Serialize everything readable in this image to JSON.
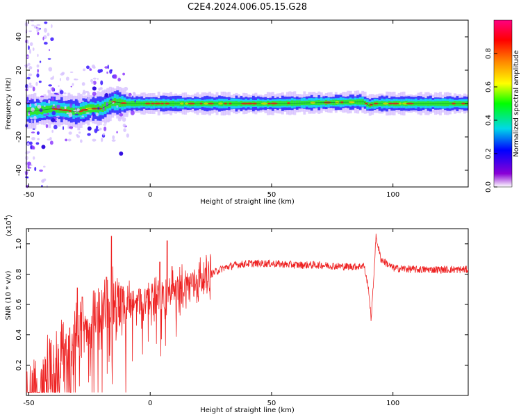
{
  "title": "C2E4.2024.006.05.15.G28",
  "chart_data": [
    {
      "type": "heatmap",
      "xlabel": "Height of straight line (km)",
      "ylabel": "Frequency (Hz)",
      "xlim": [
        -51,
        131
      ],
      "ylim": [
        -50,
        50
      ],
      "xticks": [
        -50,
        0,
        50,
        100
      ],
      "yticks": [
        -40,
        -20,
        0,
        20,
        40
      ],
      "colorbar": {
        "label": "Normalized spectral amplitude",
        "range": [
          0,
          1
        ],
        "ticks": [
          "0.0",
          "0.2",
          "0.4",
          "0.6",
          "0.8"
        ],
        "colormap": "rainbow",
        "colors": [
          "#ffffff",
          "#8a00d6",
          "#0000ff",
          "#00d8e8",
          "#00ff00",
          "#ffff00",
          "#ff8800",
          "#ff0000",
          "#ff0080"
        ]
      },
      "ridge": [
        [
          -51,
          -5
        ],
        [
          -45,
          -4
        ],
        [
          -40,
          -3
        ],
        [
          -35,
          -4
        ],
        [
          -30,
          -5
        ],
        [
          -25,
          -3
        ],
        [
          -20,
          -3
        ],
        [
          -15,
          1
        ],
        [
          -10,
          0
        ],
        [
          0,
          0
        ],
        [
          50,
          0
        ],
        [
          88,
          1
        ],
        [
          90,
          -1
        ],
        [
          93,
          0
        ],
        [
          131,
          0
        ]
      ]
    },
    {
      "type": "line",
      "xlabel": "Height of straight line (km)",
      "ylabel": "SNR (10 * v/v)",
      "scale_label": "(x10",
      "scale_exponent": "4",
      "xlim": [
        -51,
        131
      ],
      "ylim": [
        0,
        1.1
      ],
      "xticks": [
        -50,
        0,
        50,
        100
      ],
      "yticks": [
        0.2,
        0.4,
        0.6,
        0.8,
        1.0
      ],
      "line_color": "#ee2222",
      "envelope": [
        [
          -51,
          0.04
        ],
        [
          -45,
          0.05
        ],
        [
          -42,
          0.12
        ],
        [
          -38,
          0.22
        ],
        [
          -34,
          0.3
        ],
        [
          -30,
          0.38
        ],
        [
          -26,
          0.45
        ],
        [
          -22,
          0.5
        ],
        [
          -18,
          0.55
        ],
        [
          -14,
          0.58
        ],
        [
          -10,
          0.6
        ],
        [
          -5,
          0.62
        ],
        [
          0,
          0.63
        ],
        [
          5,
          0.64
        ],
        [
          10,
          0.67
        ],
        [
          15,
          0.72
        ],
        [
          20,
          0.76
        ],
        [
          25,
          0.8
        ],
        [
          30,
          0.84
        ],
        [
          35,
          0.86
        ],
        [
          40,
          0.87
        ],
        [
          50,
          0.87
        ],
        [
          60,
          0.86
        ],
        [
          70,
          0.86
        ],
        [
          80,
          0.85
        ],
        [
          86,
          0.85
        ],
        [
          88,
          0.86
        ],
        [
          90,
          0.7
        ],
        [
          91,
          0.5
        ],
        [
          92,
          0.75
        ],
        [
          93,
          1.05
        ],
        [
          95,
          0.9
        ],
        [
          100,
          0.84
        ],
        [
          110,
          0.83
        ],
        [
          120,
          0.83
        ],
        [
          131,
          0.83
        ]
      ],
      "spikes": [
        [
          -30,
          0.71
        ],
        [
          -28,
          0.65
        ],
        [
          -22,
          0.58
        ],
        [
          -18,
          0.78
        ],
        [
          -16,
          1.05
        ],
        [
          -12,
          0.72
        ],
        [
          -9,
          0.65
        ],
        [
          -4,
          0.7
        ],
        [
          0,
          0.62
        ],
        [
          4,
          0.88
        ],
        [
          7,
          1.02
        ],
        [
          9,
          0.85
        ],
        [
          11,
          0.75
        ],
        [
          15,
          0.78
        ]
      ]
    }
  ]
}
